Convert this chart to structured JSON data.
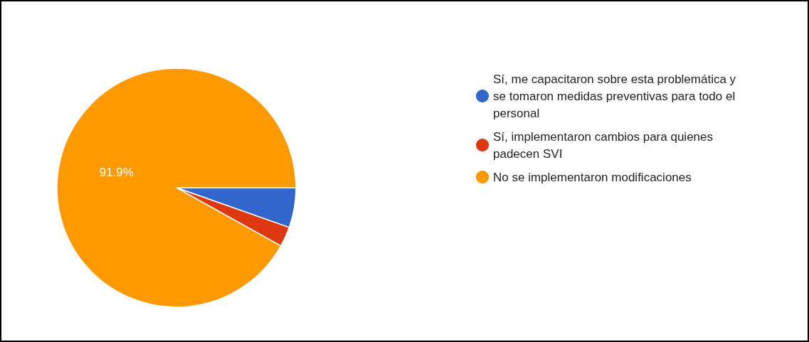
{
  "chart_data": {
    "type": "pie",
    "categories": [
      "Sí, me capacitaron sobre esta problemática y se tomaron medidas preventivas para todo el personal",
      "Sí, implementaron cambios para quienes padecen SVI",
      "No se implementaron modificaciones"
    ],
    "values": [
      5.4,
      2.7,
      91.9
    ],
    "colors": [
      "#3366cc",
      "#dc3912",
      "#ff9900"
    ],
    "value_labels": [
      null,
      null,
      "91.9%"
    ],
    "legend": "right"
  }
}
